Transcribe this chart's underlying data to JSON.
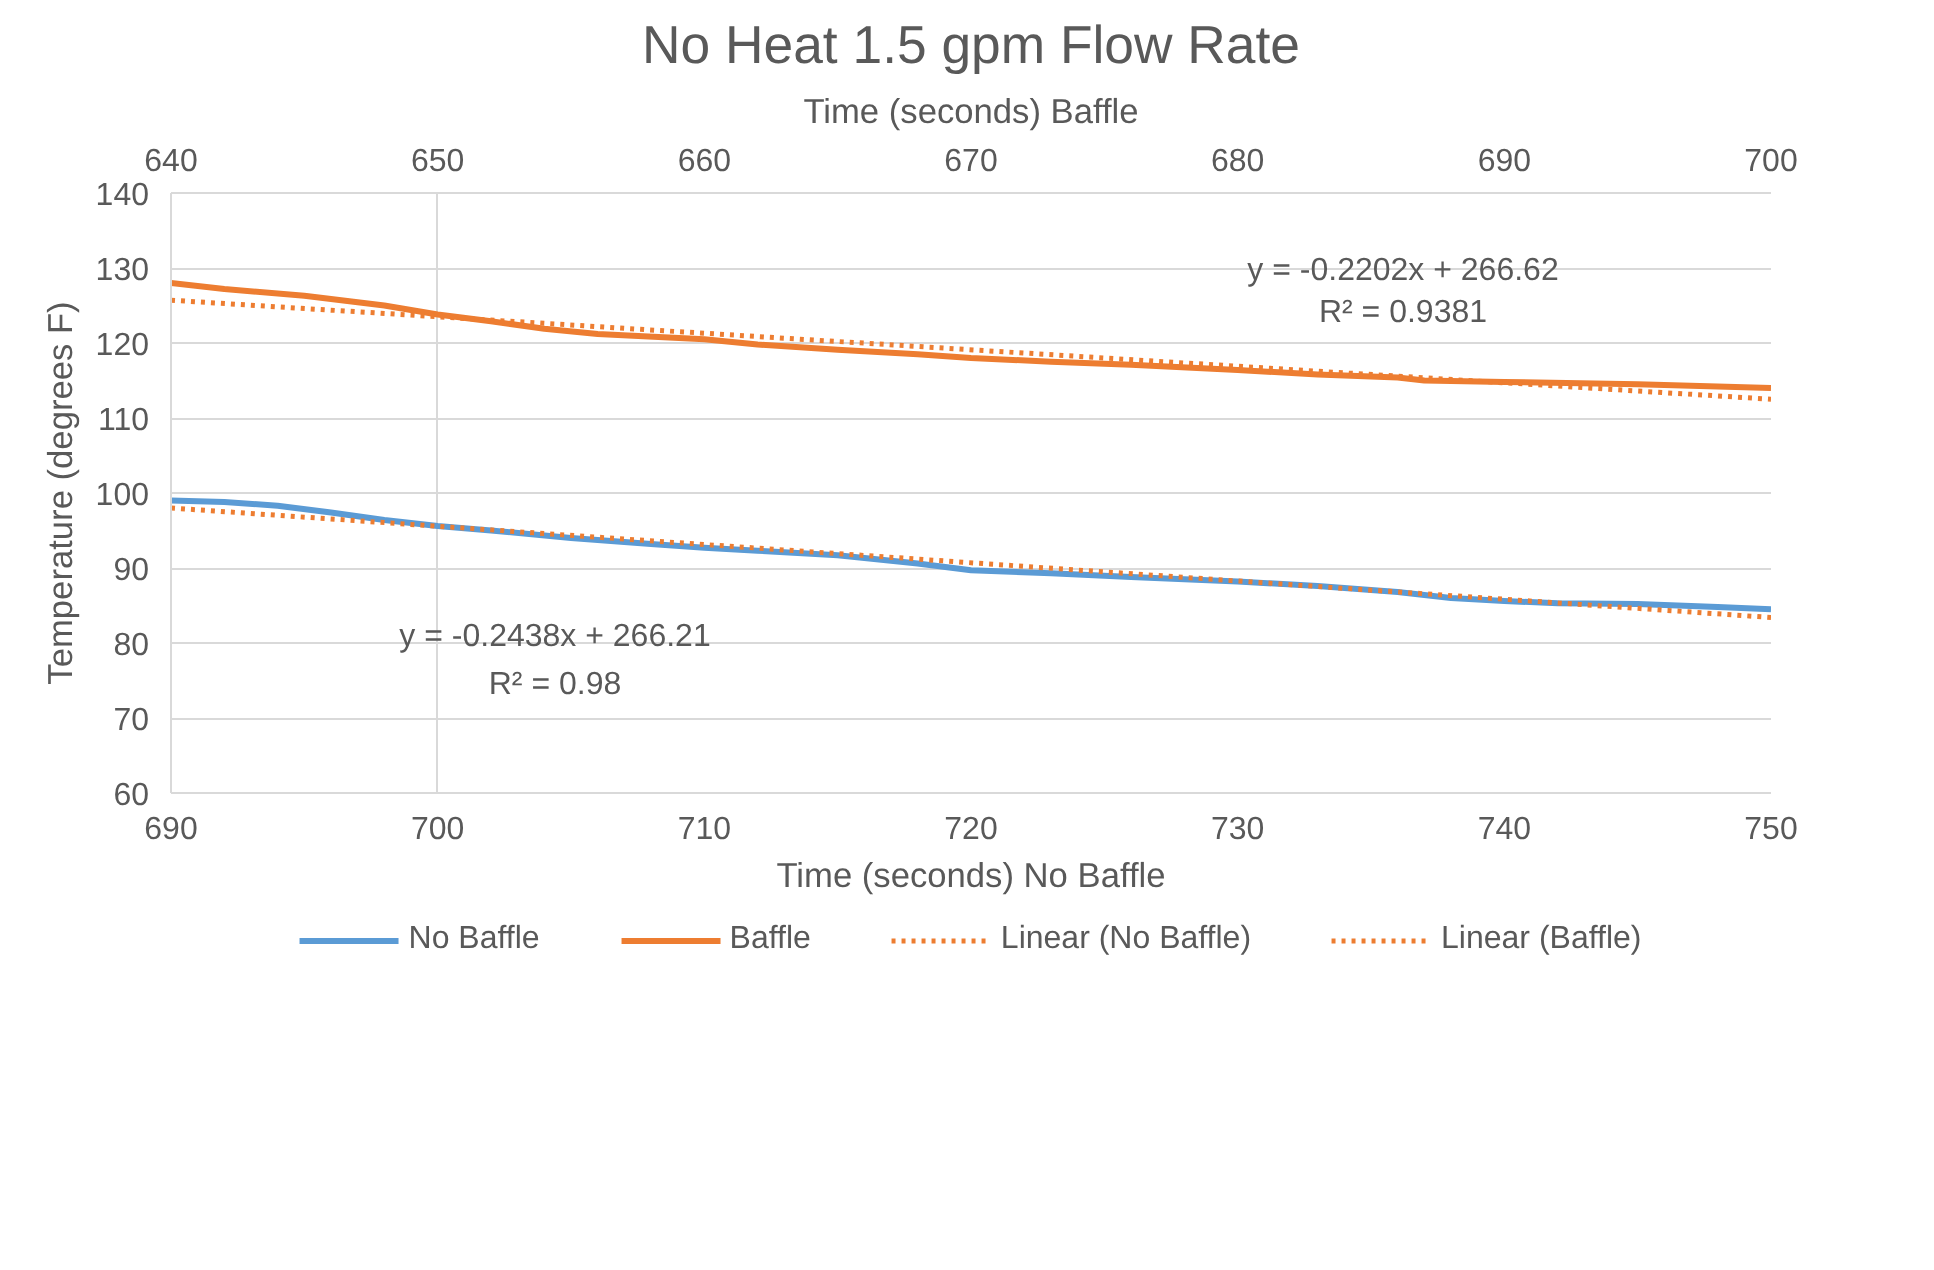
{
  "chart_data": {
    "type": "line",
    "title": "No Heat 1.5 gpm Flow Rate",
    "xlabel": "Time (seconds) No Baffle",
    "x2label": "Time (seconds) Baffle",
    "ylabel": "Temperature (degrees F)",
    "xlim": [
      690,
      750
    ],
    "xticks": [
      690,
      700,
      710,
      720,
      730,
      740,
      750
    ],
    "x2lim": [
      640,
      700
    ],
    "x2ticks": [
      640,
      650,
      660,
      670,
      680,
      690,
      700
    ],
    "ylim": [
      60,
      140
    ],
    "yticks": [
      60,
      70,
      80,
      90,
      100,
      110,
      120,
      130,
      140
    ],
    "grid": true,
    "legend": "bottom",
    "marker": "none",
    "series": [
      {
        "name": "No Baffle",
        "color": "#5b9bd5",
        "line_style": "solid",
        "x": [
          690,
          692,
          694,
          696,
          698,
          700,
          702,
          705,
          708,
          710,
          712,
          715,
          718,
          720,
          723,
          726,
          730,
          733,
          736,
          738,
          740,
          742,
          745,
          748,
          750
        ],
        "values": [
          99.0,
          98.8,
          98.3,
          97.4,
          96.4,
          95.6,
          95.0,
          94.0,
          93.2,
          92.7,
          92.3,
          91.7,
          90.6,
          89.7,
          89.3,
          88.8,
          88.2,
          87.6,
          86.8,
          86.0,
          85.6,
          85.3,
          85.2,
          84.8,
          84.5
        ]
      },
      {
        "name": "Baffle",
        "color": "#ed7d31",
        "line_style": "solid",
        "axis": "x2",
        "x": [
          640,
          642,
          645,
          648,
          650,
          652,
          654,
          656,
          660,
          662,
          665,
          668,
          670,
          673,
          676,
          680,
          683,
          686,
          687,
          690,
          695,
          700
        ],
        "values": [
          128.0,
          127.2,
          126.3,
          125.0,
          123.8,
          122.9,
          121.9,
          121.2,
          120.5,
          119.8,
          119.1,
          118.5,
          118.0,
          117.5,
          117.1,
          116.4,
          115.8,
          115.4,
          115.0,
          114.8,
          114.5,
          114.0
        ]
      },
      {
        "name": "Linear (No Baffle)",
        "color": "#ed7d31",
        "line_style": "dotted",
        "x": [
          690,
          750
        ],
        "values": [
          98.0,
          83.4
        ]
      },
      {
        "name": "Linear (Baffle)",
        "color": "#ed7d31",
        "line_style": "dotted",
        "axis": "x2",
        "x": [
          640,
          700
        ],
        "values": [
          125.7,
          112.5
        ]
      }
    ],
    "annotations": [
      "y = -0.2202x + 266.62",
      "R² = 0.9381",
      "y = -0.2438x + 266.21",
      "R² = 0.98"
    ]
  }
}
